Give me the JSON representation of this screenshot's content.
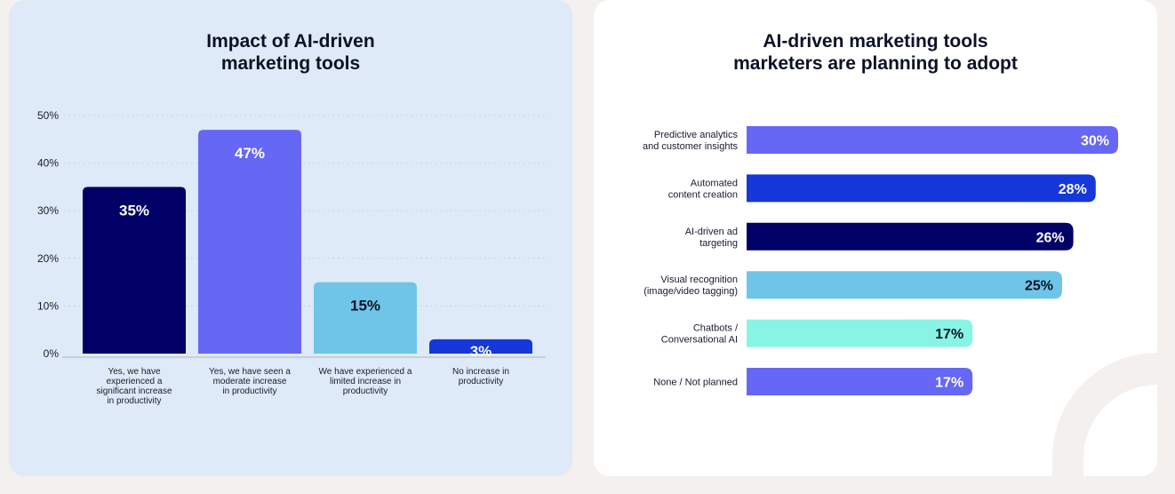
{
  "charts_panel": {
    "left_title": "Impact of AI-driven\nmarketing tools",
    "right_title": "AI-driven marketing tools\nmarketers are planning to adopt"
  },
  "chart_data": [
    {
      "type": "bar",
      "orientation": "vertical",
      "title": "Impact of AI-driven marketing tools",
      "xlabel": "",
      "ylabel": "",
      "ylim": [
        0,
        50
      ],
      "yticks": [
        "0%",
        "10%",
        "20%",
        "30%",
        "40%",
        "50%"
      ],
      "ytick_values": [
        0,
        10,
        20,
        30,
        40,
        50
      ],
      "grid": true,
      "categories": [
        "Yes, we have\nexperienced a\nsignificant increase\nin productivity",
        "Yes, we have seen a\nmoderate increase\nin productivity",
        "We have experienced a\nlimited increase in\nproductivity",
        "No increase in\nproductivity"
      ],
      "values": [
        35,
        47,
        15,
        3
      ],
      "data_labels": [
        "35%",
        "47%",
        "15%",
        "3%"
      ],
      "colors": [
        "#010066",
        "#6667f5",
        "#6fc5e8",
        "#1637d9"
      ],
      "label_colors": [
        "#ffffff",
        "#ffffff",
        "#0c1226",
        "#ffffff"
      ]
    },
    {
      "type": "bar",
      "orientation": "horizontal",
      "title": "AI-driven marketing tools marketers are planning to adopt",
      "xlabel": "",
      "ylabel": "",
      "grid": false,
      "categories": [
        "Predictive analytics\nand customer insights",
        "Automated\ncontent creation",
        "AI-driven ad\ntargeting",
        "Visual recognition\n(image/video tagging)",
        "Chatbots /\nConversational AI",
        "None / Not planned"
      ],
      "values": [
        30,
        28,
        26,
        25,
        17,
        17
      ],
      "data_labels": [
        "30%",
        "28%",
        "26%",
        "25%",
        "17%",
        "17%"
      ],
      "colors": [
        "#6667f5",
        "#1637d9",
        "#010066",
        "#6fc5e8",
        "#88f4e4",
        "#6667f5"
      ],
      "label_colors": [
        "#ffffff",
        "#ffffff",
        "#ffffff",
        "#0c1226",
        "#0c1226",
        "#ffffff"
      ]
    }
  ]
}
